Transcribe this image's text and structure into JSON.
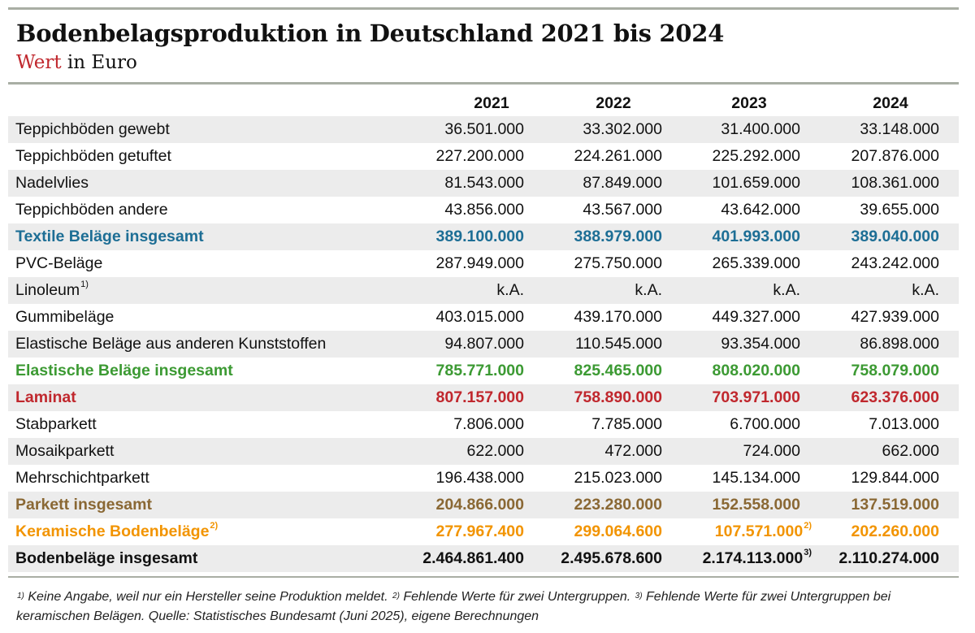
{
  "title": "Bodenbelagsproduktion in Deutschland 2021 bis 2024",
  "subtitle": {
    "accent": "Wert",
    "rest": " in Euro"
  },
  "colors": {
    "blue": "#1d6e95",
    "green": "#3c9a33",
    "red": "#c0272d",
    "brown": "#8a6834",
    "orange": "#f29400",
    "rule": "#a9aea4",
    "stripe": "#ececec"
  },
  "chart_data": {
    "type": "table",
    "columns": [
      "2021",
      "2022",
      "2023",
      "2024"
    ],
    "rows": [
      {
        "label": "Teppichböden gewebt",
        "values": [
          "36.501.000",
          "33.302.000",
          "31.400.000",
          "33.148.000"
        ]
      },
      {
        "label": "Teppichböden getuftet",
        "values": [
          "227.200.000",
          "224.261.000",
          "225.292.000",
          "207.876.000"
        ]
      },
      {
        "label": "Nadelvlies",
        "values": [
          "81.543.000",
          "87.849.000",
          "101.659.000",
          "108.361.000"
        ]
      },
      {
        "label": "Teppichböden andere",
        "values": [
          "43.856.000",
          "43.567.000",
          "43.642.000",
          "39.655.000"
        ]
      },
      {
        "label": "Textile Beläge insgesamt",
        "values": [
          "389.100.000",
          "388.979.000",
          "401.993.000",
          "389.040.000"
        ],
        "style": "bold",
        "color": "blue"
      },
      {
        "label": "PVC-Beläge",
        "values": [
          "287.949.000",
          "275.750.000",
          "265.339.000",
          "243.242.000"
        ]
      },
      {
        "label": "Linoleum",
        "label_note": "1)",
        "values": [
          "k.A.",
          "k.A.",
          "k.A.",
          "k.A."
        ]
      },
      {
        "label": "Gummibeläge",
        "values": [
          "403.015.000",
          "439.170.000",
          "449.327.000",
          "427.939.000"
        ]
      },
      {
        "label": "Elastische Beläge aus anderen Kunststoffen",
        "values": [
          "94.807.000",
          "110.545.000",
          "93.354.000",
          "86.898.000"
        ]
      },
      {
        "label": "Elastische Beläge insgesamt",
        "values": [
          "785.771.000",
          "825.465.000",
          "808.020.000",
          "758.079.000"
        ],
        "style": "bold",
        "color": "green"
      },
      {
        "label": "Laminat",
        "values": [
          "807.157.000",
          "758.890.000",
          "703.971.000",
          "623.376.000"
        ],
        "style": "bold",
        "color": "red"
      },
      {
        "label": "Stabparkett",
        "values": [
          "7.806.000",
          "7.785.000",
          "6.700.000",
          "7.013.000"
        ]
      },
      {
        "label": "Mosaikparkett",
        "values": [
          "622.000",
          "472.000",
          "724.000",
          "662.000"
        ]
      },
      {
        "label": "Mehrschichtparkett",
        "values": [
          "196.438.000",
          "215.023.000",
          "145.134.000",
          "129.844.000"
        ]
      },
      {
        "label": "Parkett insgesamt",
        "values": [
          "204.866.000",
          "223.280.000",
          "152.558.000",
          "137.519.000"
        ],
        "style": "bold",
        "color": "brown"
      },
      {
        "label": "Keramische Bodenbeläge",
        "label_note": "2)",
        "values": [
          "277.967.400",
          "299.064.600",
          "107.571.000",
          "202.260.000"
        ],
        "value_notes": [
          "",
          "",
          "2)",
          ""
        ],
        "style": "bold",
        "color": "orange"
      },
      {
        "label": "Bodenbeläge insgesamt",
        "values": [
          "2.464.861.400",
          "2.495.678.600",
          "2.174.113.000",
          "2.110.274.000"
        ],
        "value_notes": [
          "",
          "",
          "3)",
          ""
        ],
        "style": "bold",
        "color": "black"
      }
    ]
  },
  "footnote": {
    "n1": "1)",
    "t1": " Keine Angabe, weil nur ein Hersteller seine Produktion meldet. ",
    "n2": "2)",
    "t2": " Fehlende Werte für zwei Untergruppen. ",
    "n3": "3)",
    "t3": " Fehlende Werte für zwei Untergruppen bei keramischen Belägen. Quelle: Statistisches Bundesamt (Juni 2025), eigene Berechnungen"
  }
}
